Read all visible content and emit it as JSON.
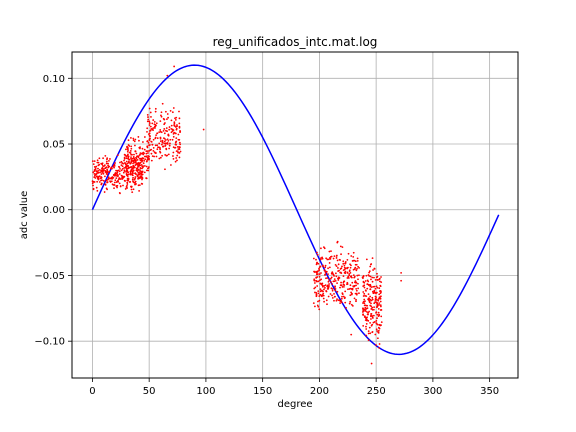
{
  "chart_data": {
    "type": "scatter",
    "title": "reg_unificados_intc.mat.log",
    "xlabel": "degree",
    "ylabel": "adc value",
    "xlim": [
      -18,
      375
    ],
    "ylim": [
      -0.128,
      0.12
    ],
    "xticks": [
      0,
      50,
      100,
      150,
      200,
      250,
      300,
      350
    ],
    "yticks": [
      -0.1,
      -0.05,
      0.0,
      0.05,
      0.1
    ],
    "xtick_labels": [
      "0",
      "50",
      "100",
      "150",
      "200",
      "250",
      "300",
      "350"
    ],
    "ytick_labels": [
      "−0.10",
      "−0.05",
      "0.00",
      "0.05",
      "0.10"
    ],
    "grid": true,
    "series": [
      {
        "kind": "line",
        "color": "#0000ff",
        "function": "sine",
        "amplitude": 0.11,
        "x_start": 0,
        "x_end": 358,
        "samples": 180
      },
      {
        "kind": "scatter",
        "color": "#ff0000",
        "clusters": [
          {
            "x_range": [
              0,
              45
            ],
            "y_range": [
              0.01,
              0.045
            ],
            "count": 360
          },
          {
            "x_range": [
              28,
              50
            ],
            "y_range": [
              0.018,
              0.06
            ],
            "count": 160
          },
          {
            "x_range": [
              48,
              78
            ],
            "y_range": [
              0.022,
              0.085
            ],
            "count": 220
          },
          {
            "x_range": [
              195,
              235
            ],
            "y_range": [
              -0.085,
              -0.02
            ],
            "count": 320
          },
          {
            "x_range": [
              238,
              255
            ],
            "y_range": [
              -0.115,
              -0.025
            ],
            "count": 230
          }
        ],
        "points": [
          [
            66,
            0.102
          ],
          [
            72,
            0.109
          ],
          [
            98,
            0.061
          ],
          [
            2,
            0.037
          ],
          [
            1,
            0.016
          ],
          [
            272,
            -0.048
          ],
          [
            272,
            -0.054
          ],
          [
            246,
            -0.117
          ],
          [
            250,
            -0.103
          ],
          [
            228,
            -0.095
          ]
        ]
      }
    ]
  }
}
